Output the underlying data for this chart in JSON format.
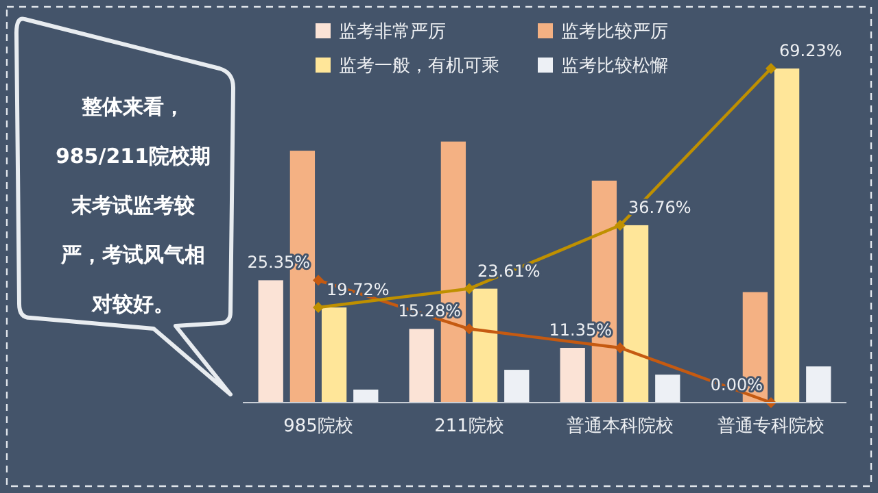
{
  "chart_data": {
    "type": "bar",
    "categories": [
      "985院校",
      "211院校",
      "普通本科院校",
      "普通专科院校"
    ],
    "series": [
      {
        "name": "监考非常严厉",
        "color": "#fbe3d6",
        "values": [
          25.35,
          15.28,
          11.35,
          0.0
        ]
      },
      {
        "name": "监考比较严厉",
        "color": "#f4b183",
        "values": [
          52.2,
          54.1,
          46.0,
          22.9
        ]
      },
      {
        "name": "监考一般，有机可乘",
        "color": "#ffe699",
        "values": [
          19.72,
          23.61,
          36.76,
          69.23
        ]
      },
      {
        "name": "监考比较松懈",
        "color": "#edf0f5",
        "values": [
          2.7,
          6.8,
          5.8,
          7.5
        ]
      },
      {
        "type": "line",
        "color": "#c55a11",
        "marker": "diamond",
        "values": [
          25.35,
          15.28,
          11.35,
          0.0
        ],
        "value_labels": [
          "25.35%",
          "15.28%",
          "11.35%",
          "0.00%"
        ]
      },
      {
        "type": "line",
        "color": "#bf9000",
        "marker": "diamond",
        "values": [
          19.72,
          23.61,
          36.76,
          69.23
        ],
        "value_labels": [
          "19.72%",
          "23.61%",
          "36.76%",
          "69.23%"
        ]
      }
    ],
    "tick_labels": "x",
    "legend": "top",
    "annotations": [
      "整体来看，985/211院校期末考试监考较严，考试风气相对较好。"
    ]
  }
}
